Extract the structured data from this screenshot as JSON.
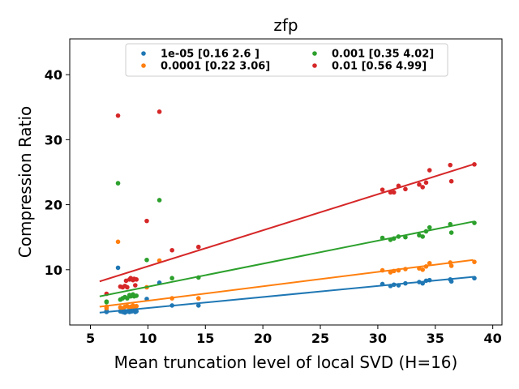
{
  "chart_data": {
    "type": "scatter",
    "title": "zfp",
    "xlabel": "Mean truncation level of local SVD (H=16)",
    "ylabel": "Compression Ratio",
    "xlim": [
      3.2,
      40.8
    ],
    "ylim": [
      1.5,
      45.5
    ],
    "xticks": [
      5,
      10,
      15,
      20,
      25,
      30,
      35,
      40
    ],
    "yticks": [
      10,
      20,
      30,
      40
    ],
    "grid": false,
    "legend": {
      "placement": "upper center",
      "columns": 2
    },
    "series": [
      {
        "name": "1e-05 [0.16 2.6 ]",
        "color": "#1f77b4",
        "fit": {
          "x": [
            5.8,
            38.3
          ],
          "y": [
            3.4,
            8.9
          ]
        },
        "points": [
          [
            6.4,
            3.5
          ],
          [
            6.4,
            3.7
          ],
          [
            7.4,
            10.3
          ],
          [
            7.6,
            3.6
          ],
          [
            7.8,
            3.5
          ],
          [
            7.9,
            3.7
          ],
          [
            8.0,
            3.4
          ],
          [
            8.2,
            3.6
          ],
          [
            8.4,
            3.5
          ],
          [
            8.5,
            3.8
          ],
          [
            8.6,
            3.6
          ],
          [
            8.7,
            3.7
          ],
          [
            8.9,
            3.5
          ],
          [
            9.0,
            3.6
          ],
          [
            9.9,
            5.5
          ],
          [
            11.0,
            8.0
          ],
          [
            12.1,
            4.5
          ],
          [
            14.4,
            4.5
          ],
          [
            30.4,
            7.8
          ],
          [
            31.1,
            7.5
          ],
          [
            31.4,
            7.7
          ],
          [
            31.8,
            7.6
          ],
          [
            32.4,
            7.9
          ],
          [
            33.6,
            8.1
          ],
          [
            33.9,
            7.9
          ],
          [
            34.2,
            8.3
          ],
          [
            34.5,
            8.4
          ],
          [
            36.3,
            8.5
          ],
          [
            36.4,
            8.2
          ],
          [
            38.4,
            8.7
          ]
        ]
      },
      {
        "name": "0.0001 [0.22 3.06]",
        "color": "#ff7f0e",
        "fit": {
          "x": [
            5.8,
            38.3
          ],
          "y": [
            4.3,
            11.5
          ]
        },
        "points": [
          [
            6.4,
            4.1
          ],
          [
            6.4,
            4.3
          ],
          [
            7.4,
            14.3
          ],
          [
            7.6,
            4.2
          ],
          [
            7.8,
            4.0
          ],
          [
            8.0,
            4.3
          ],
          [
            8.2,
            4.4
          ],
          [
            8.4,
            4.1
          ],
          [
            8.5,
            4.3
          ],
          [
            8.7,
            4.5
          ],
          [
            8.8,
            4.2
          ],
          [
            9.0,
            4.4
          ],
          [
            9.9,
            7.3
          ],
          [
            11.0,
            11.4
          ],
          [
            12.1,
            5.6
          ],
          [
            14.4,
            5.6
          ],
          [
            30.4,
            9.9
          ],
          [
            31.1,
            9.6
          ],
          [
            31.4,
            9.8
          ],
          [
            31.8,
            9.9
          ],
          [
            32.4,
            10.1
          ],
          [
            33.6,
            10.2
          ],
          [
            33.9,
            10.0
          ],
          [
            34.2,
            10.5
          ],
          [
            34.5,
            11.0
          ],
          [
            36.3,
            11.1
          ],
          [
            36.4,
            10.6
          ],
          [
            38.4,
            11.2
          ]
        ]
      },
      {
        "name": "0.001 [0.35 4.02]",
        "color": "#2ca02c",
        "fit": {
          "x": [
            5.8,
            38.3
          ],
          "y": [
            5.9,
            17.4
          ]
        },
        "points": [
          [
            6.4,
            5.1
          ],
          [
            6.4,
            5.0
          ],
          [
            7.4,
            23.3
          ],
          [
            7.6,
            5.4
          ],
          [
            7.8,
            5.6
          ],
          [
            8.0,
            5.8
          ],
          [
            8.2,
            5.6
          ],
          [
            8.4,
            6.1
          ],
          [
            8.5,
            5.9
          ],
          [
            8.7,
            6.2
          ],
          [
            8.8,
            5.9
          ],
          [
            9.0,
            6.0
          ],
          [
            9.9,
            11.5
          ],
          [
            11.0,
            20.7
          ],
          [
            12.1,
            8.7
          ],
          [
            14.4,
            8.8
          ],
          [
            30.4,
            14.9
          ],
          [
            31.1,
            14.6
          ],
          [
            31.4,
            14.8
          ],
          [
            31.8,
            15.1
          ],
          [
            32.4,
            15.0
          ],
          [
            33.6,
            15.3
          ],
          [
            33.9,
            15.1
          ],
          [
            34.2,
            15.9
          ],
          [
            34.5,
            16.5
          ],
          [
            36.3,
            17.0
          ],
          [
            36.4,
            15.7
          ],
          [
            38.4,
            17.2
          ]
        ]
      },
      {
        "name": "0.01 [0.56 4.99]",
        "color": "#d62728",
        "fit": {
          "x": [
            5.8,
            38.3
          ],
          "y": [
            8.2,
            26.2
          ]
        },
        "points": [
          [
            6.4,
            6.3
          ],
          [
            7.4,
            33.7
          ],
          [
            7.6,
            7.4
          ],
          [
            7.8,
            7.3
          ],
          [
            8.0,
            7.5
          ],
          [
            8.1,
            8.3
          ],
          [
            8.2,
            7.3
          ],
          [
            8.4,
            8.5
          ],
          [
            8.5,
            8.7
          ],
          [
            8.7,
            8.4
          ],
          [
            8.8,
            8.6
          ],
          [
            8.9,
            7.6
          ],
          [
            9.0,
            8.5
          ],
          [
            9.9,
            17.5
          ],
          [
            11.0,
            34.3
          ],
          [
            12.1,
            13.0
          ],
          [
            14.4,
            13.5
          ],
          [
            30.4,
            22.3
          ],
          [
            31.1,
            21.9
          ],
          [
            31.4,
            21.9
          ],
          [
            31.8,
            22.9
          ],
          [
            32.4,
            22.4
          ],
          [
            33.6,
            23.1
          ],
          [
            33.9,
            22.7
          ],
          [
            34.2,
            23.4
          ],
          [
            34.5,
            25.3
          ],
          [
            36.3,
            26.1
          ],
          [
            36.4,
            23.6
          ],
          [
            38.4,
            26.2
          ]
        ]
      }
    ]
  }
}
